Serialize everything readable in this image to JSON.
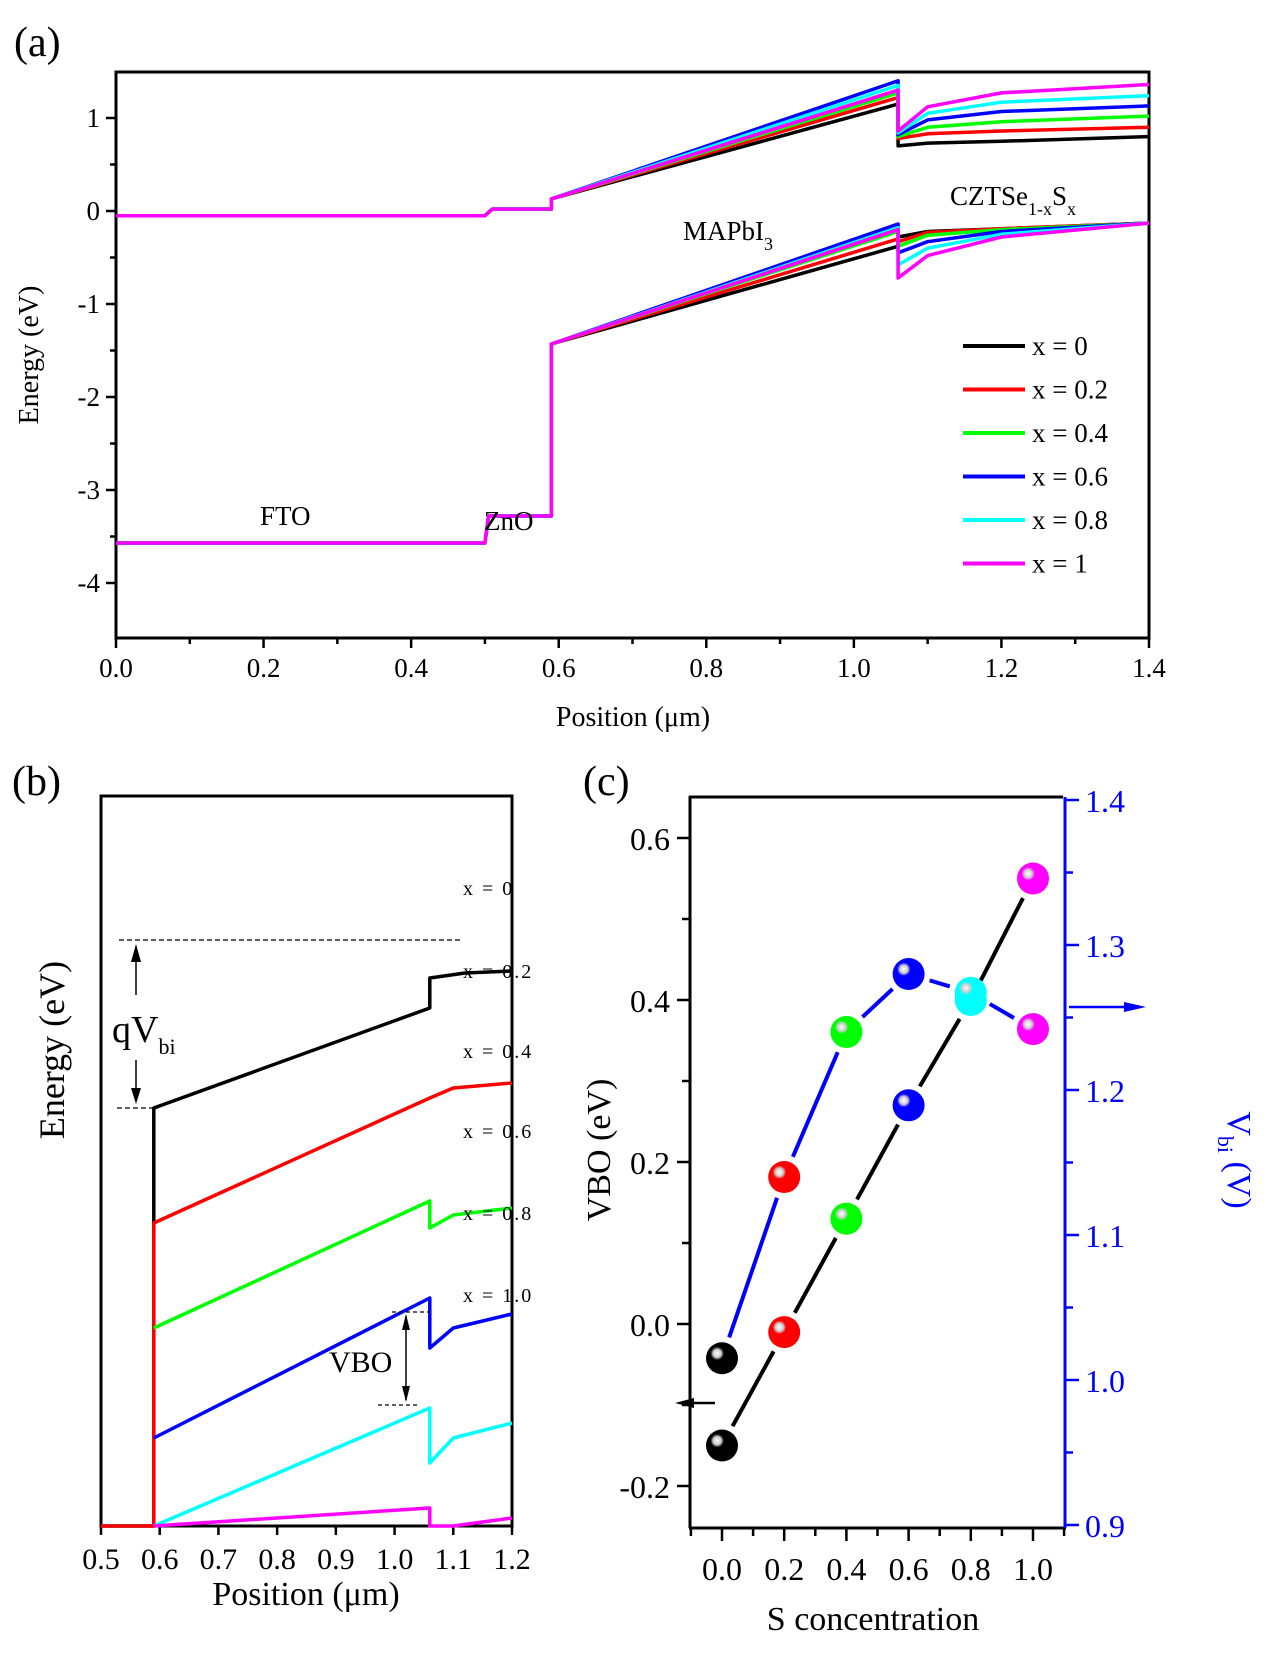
{
  "chart_data": [
    {
      "id": "a",
      "type": "line",
      "panel_label": "(a)",
      "title": "",
      "xlabel": "Position (μm)",
      "ylabel": "Energy (eV)",
      "xlim": [
        0.0,
        1.4
      ],
      "ylim": [
        -4,
        1.5
      ],
      "xticks": [
        "0.0",
        "0.2",
        "0.4",
        "0.6",
        "0.8",
        "1.0",
        "1.2",
        "1.4"
      ],
      "xtick_values": [
        0.0,
        0.2,
        0.4,
        0.6,
        0.8,
        1.0,
        1.2,
        1.4
      ],
      "yticks": [
        "1",
        "0",
        "-1",
        "-2",
        "-3",
        "-4"
      ],
      "ytick_values": [
        1,
        0,
        -1,
        -2,
        -3,
        -4
      ],
      "grid": false,
      "legend_position": "right-middle",
      "annotations": [
        "FTO",
        "ZnO",
        "MAPbI",
        "3",
        "CZTSe",
        "1-x",
        "S",
        "x"
      ],
      "series": [
        {
          "name": "x = 0",
          "color": "#000000",
          "cb": [
            [
              0,
              -0.05
            ],
            [
              0.5,
              -0.05
            ],
            [
              0.51,
              0.02
            ],
            [
              0.59,
              0.02
            ],
            [
              0.59,
              0.13
            ],
            [
              1.06,
              1.15
            ],
            [
              1.06,
              0.7
            ],
            [
              1.1,
              0.73
            ],
            [
              1.2,
              0.75
            ],
            [
              1.4,
              0.8
            ]
          ],
          "vb": [
            [
              0,
              -3.57
            ],
            [
              0.5,
              -3.57
            ],
            [
              0.505,
              -3.28
            ],
            [
              0.59,
              -3.28
            ],
            [
              0.59,
              -1.43
            ],
            [
              1.06,
              -0.38
            ],
            [
              1.06,
              -0.28
            ],
            [
              1.1,
              -0.22
            ],
            [
              1.2,
              -0.19
            ],
            [
              1.4,
              -0.13
            ]
          ]
        },
        {
          "name": "x = 0.2",
          "color": "#ff0000",
          "cb": [
            [
              0,
              -0.05
            ],
            [
              0.5,
              -0.05
            ],
            [
              0.51,
              0.02
            ],
            [
              0.59,
              0.02
            ],
            [
              0.59,
              0.13
            ],
            [
              1.06,
              1.22
            ],
            [
              1.06,
              0.78
            ],
            [
              1.1,
              0.83
            ],
            [
              1.2,
              0.86
            ],
            [
              1.4,
              0.9
            ]
          ],
          "vb": [
            [
              0,
              -3.57
            ],
            [
              0.5,
              -3.57
            ],
            [
              0.505,
              -3.28
            ],
            [
              0.59,
              -3.28
            ],
            [
              0.59,
              -1.43
            ],
            [
              1.06,
              -0.3
            ],
            [
              1.06,
              -0.33
            ],
            [
              1.1,
              -0.23
            ],
            [
              1.2,
              -0.19
            ],
            [
              1.4,
              -0.13
            ]
          ]
        },
        {
          "name": "x = 0.4",
          "color": "#00ff00",
          "cb": [
            [
              0,
              -0.05
            ],
            [
              0.5,
              -0.05
            ],
            [
              0.51,
              0.02
            ],
            [
              0.59,
              0.02
            ],
            [
              0.59,
              0.13
            ],
            [
              1.06,
              1.27
            ],
            [
              1.06,
              0.8
            ],
            [
              1.1,
              0.9
            ],
            [
              1.2,
              0.96
            ],
            [
              1.4,
              1.02
            ]
          ],
          "vb": [
            [
              0,
              -3.57
            ],
            [
              0.5,
              -3.57
            ],
            [
              0.505,
              -3.28
            ],
            [
              0.59,
              -3.28
            ],
            [
              0.59,
              -1.43
            ],
            [
              1.06,
              -0.22
            ],
            [
              1.06,
              -0.38
            ],
            [
              1.1,
              -0.26
            ],
            [
              1.2,
              -0.2
            ],
            [
              1.4,
              -0.13
            ]
          ]
        },
        {
          "name": "x = 0.6",
          "color": "#0000ff",
          "cb": [
            [
              0,
              -0.05
            ],
            [
              0.5,
              -0.05
            ],
            [
              0.51,
              0.02
            ],
            [
              0.59,
              0.02
            ],
            [
              0.59,
              0.13
            ],
            [
              1.06,
              1.4
            ],
            [
              1.06,
              0.82
            ],
            [
              1.1,
              0.98
            ],
            [
              1.2,
              1.07
            ],
            [
              1.4,
              1.13
            ]
          ],
          "vb": [
            [
              0,
              -3.57
            ],
            [
              0.5,
              -3.57
            ],
            [
              0.505,
              -3.28
            ],
            [
              0.59,
              -3.28
            ],
            [
              0.59,
              -1.43
            ],
            [
              1.06,
              -0.14
            ],
            [
              1.06,
              -0.45
            ],
            [
              1.1,
              -0.33
            ],
            [
              1.2,
              -0.22
            ],
            [
              1.4,
              -0.13
            ]
          ]
        },
        {
          "name": "x = 0.8",
          "color": "#00ffff",
          "cb": [
            [
              0,
              -0.05
            ],
            [
              0.5,
              -0.05
            ],
            [
              0.51,
              0.02
            ],
            [
              0.59,
              0.02
            ],
            [
              0.59,
              0.13
            ],
            [
              1.06,
              1.35
            ],
            [
              1.06,
              0.84
            ],
            [
              1.1,
              1.05
            ],
            [
              1.2,
              1.17
            ],
            [
              1.4,
              1.24
            ]
          ],
          "vb": [
            [
              0,
              -3.57
            ],
            [
              0.5,
              -3.57
            ],
            [
              0.505,
              -3.28
            ],
            [
              0.59,
              -3.28
            ],
            [
              0.59,
              -1.43
            ],
            [
              1.06,
              -0.18
            ],
            [
              1.06,
              -0.58
            ],
            [
              1.1,
              -0.4
            ],
            [
              1.2,
              -0.25
            ],
            [
              1.4,
              -0.13
            ]
          ]
        },
        {
          "name": "x = 1",
          "color": "#ff00ff",
          "cb": [
            [
              0,
              -0.05
            ],
            [
              0.5,
              -0.05
            ],
            [
              0.51,
              0.02
            ],
            [
              0.59,
              0.02
            ],
            [
              0.59,
              0.13
            ],
            [
              1.06,
              1.3
            ],
            [
              1.06,
              0.86
            ],
            [
              1.1,
              1.12
            ],
            [
              1.2,
              1.27
            ],
            [
              1.4,
              1.36
            ]
          ],
          "vb": [
            [
              0,
              -3.57
            ],
            [
              0.5,
              -3.57
            ],
            [
              0.505,
              -3.28
            ],
            [
              0.59,
              -3.28
            ],
            [
              0.59,
              -1.43
            ],
            [
              1.06,
              -0.2
            ],
            [
              1.06,
              -0.72
            ],
            [
              1.1,
              -0.48
            ],
            [
              1.2,
              -0.28
            ],
            [
              1.4,
              -0.13
            ]
          ]
        }
      ]
    },
    {
      "id": "b",
      "type": "line",
      "panel_label": "(b)",
      "title": "",
      "xlabel": "Position (μm)",
      "ylabel": "Energy (eV)",
      "xlim": [
        0.5,
        1.2
      ],
      "xticks": [
        "0.5",
        "0.6",
        "0.7",
        "0.8",
        "0.9",
        "1.0",
        "1.1",
        "1.2"
      ],
      "xtick_values": [
        0.5,
        0.6,
        0.7,
        0.8,
        0.9,
        1.0,
        1.1,
        1.2
      ],
      "yticks": [],
      "grid": false,
      "annotations": {
        "qvbi": "qV",
        "qvbi_sub": "bi",
        "vbo": "VBO"
      },
      "curve_labels": [
        "x = 0",
        "x = 0.2",
        "x = 0.4",
        "x = 0.6",
        "x = 0.8",
        "x = 1.0"
      ],
      "series": [
        {
          "name": "x = 0",
          "color": "#000000",
          "points": [
            [
              0.5,
              -5.8
            ],
            [
              0.505,
              -5.3
            ],
            [
              0.59,
              -5.3
            ],
            [
              0.59,
              0
            ],
            [
              1.06,
              1.0
            ],
            [
              1.06,
              1.3
            ],
            [
              1.12,
              1.35
            ],
            [
              1.2,
              1.37
            ]
          ]
        },
        {
          "name": "x = 0.2",
          "color": "#ff0000",
          "points": [
            [
              0.5,
              -7.3
            ],
            [
              0.505,
              -6.8
            ],
            [
              0.59,
              -6.8
            ],
            [
              0.59,
              -1.15
            ],
            [
              1.06,
              0.1
            ],
            [
              1.1,
              0.2
            ],
            [
              1.2,
              0.25
            ]
          ]
        },
        {
          "name": "x = 0.4",
          "color": "#00ff00",
          "points": [
            [
              0.59,
              -2.2
            ],
            [
              1.06,
              -0.93
            ],
            [
              1.06,
              -1.2
            ],
            [
              1.1,
              -1.07
            ],
            [
              1.2,
              -1.0
            ]
          ]
        },
        {
          "name": "x = 0.6",
          "color": "#0000ff",
          "points": [
            [
              0.59,
              -3.3
            ],
            [
              1.06,
              -1.9
            ],
            [
              1.06,
              -2.4
            ],
            [
              1.1,
              -2.2
            ],
            [
              1.2,
              -2.06
            ]
          ]
        },
        {
          "name": "x = 0.8",
          "color": "#00ffff",
          "points": [
            [
              0.59,
              -4.3
            ],
            [
              1.06,
              -3.0
            ],
            [
              1.06,
              -3.55
            ],
            [
              1.1,
              -3.3
            ],
            [
              1.2,
              -3.15
            ]
          ]
        },
        {
          "name": "x = 1.0",
          "color": "#ff00ff",
          "points": [
            [
              0.59,
              -5.7
            ],
            [
              1.06,
              -4.0
            ],
            [
              1.06,
              -4.6
            ],
            [
              1.1,
              -4.3
            ],
            [
              1.2,
              -4.1
            ]
          ]
        }
      ]
    },
    {
      "id": "c",
      "type": "scatter",
      "panel_label": "(c)",
      "title": "",
      "xlabel": "S concentration",
      "ylabel_left": "VBO (eV)",
      "ylabel_right": "V",
      "ylabel_right_sub": "bi",
      "ylabel_right_unit": " (V)",
      "xlim": [
        -0.1,
        1.1
      ],
      "ylim_left": [
        -0.25,
        0.65
      ],
      "ylim_right": [
        0.9,
        1.4
      ],
      "xticks": [
        "0.0",
        "0.2",
        "0.4",
        "0.6",
        "0.8",
        "1.0"
      ],
      "xtick_values": [
        0.0,
        0.2,
        0.4,
        0.6,
        0.8,
        1.0
      ],
      "yticks_left": [
        "0.6",
        "0.4",
        "0.2",
        "0.0",
        "-0.2"
      ],
      "ytick_left_values": [
        0.6,
        0.4,
        0.2,
        0.0,
        -0.2
      ],
      "yticks_right": [
        "1.4",
        "1.3",
        "1.2",
        "1.1",
        "1.0",
        "0.9"
      ],
      "ytick_right_values": [
        1.4,
        1.3,
        1.2,
        1.1,
        1.0,
        0.9
      ],
      "grid": false,
      "x": [
        0.0,
        0.2,
        0.4,
        0.6,
        0.8,
        1.0
      ],
      "marker_colors": [
        "#000000",
        "#ff0000",
        "#00ff00",
        "#0000ff",
        "#00ffff",
        "#ff00ff"
      ],
      "series": [
        {
          "name": "VBO",
          "axis": "left",
          "line_color": "#000000",
          "values": [
            -0.15,
            -0.01,
            0.13,
            0.27,
            0.4,
            0.55
          ]
        },
        {
          "name": "Vbi",
          "axis": "right",
          "line_color": "#0000ff",
          "values": [
            1.015,
            1.14,
            1.24,
            1.28,
            1.267,
            1.242
          ]
        }
      ],
      "axis_colors": {
        "left": "#000000",
        "right": "#0000ff"
      }
    }
  ]
}
